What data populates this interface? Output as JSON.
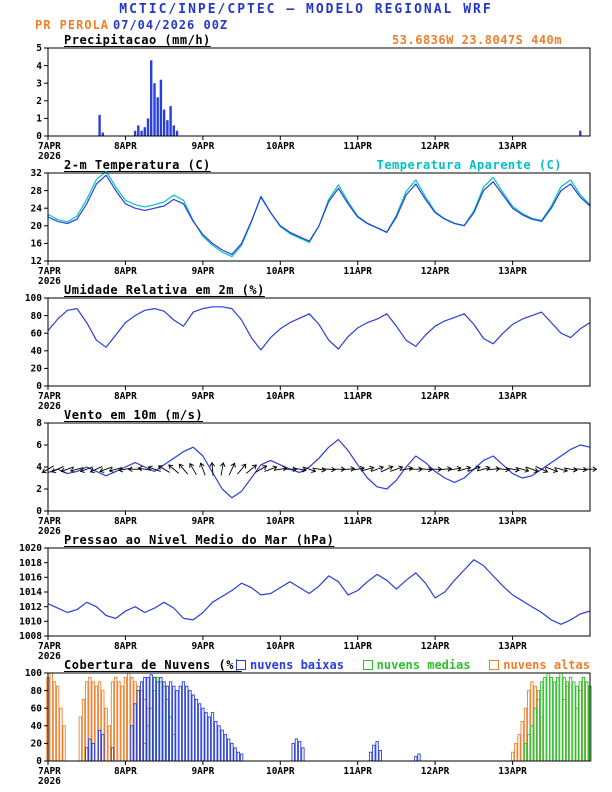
{
  "header": {
    "title": "MCTIC/INPE/CPTEC — MODELO REGIONAL WRF",
    "station": "PR PEROLA",
    "run": "07/04/2026 00Z",
    "location": "53.6836W 23.8047S 440m"
  },
  "colors": {
    "header_blue": "#2438c8",
    "orange": "#ee7f2d",
    "line_blue": "#2a3fd9",
    "cyan": "#00c2c2",
    "green": "#2fbf2f",
    "black": "#000000"
  },
  "x_axis": {
    "tmax": 168,
    "ticks": [
      {
        "t": 0,
        "label": "7APR",
        "sub": "2026"
      },
      {
        "t": 24,
        "label": "8APR"
      },
      {
        "t": 48,
        "label": "9APR"
      },
      {
        "t": 72,
        "label": "10APR"
      },
      {
        "t": 96,
        "label": "11APR"
      },
      {
        "t": 120,
        "label": "12APR"
      },
      {
        "t": 144,
        "label": "13APR"
      }
    ]
  },
  "chart_data": [
    {
      "id": "precipitation",
      "type": "bar",
      "title": "Precipitacao (mm/h)",
      "xlabel": "",
      "ylabel": "mm/h",
      "ylim": [
        0,
        5
      ],
      "yticks": [
        0,
        1,
        2,
        3,
        4,
        5
      ],
      "series": [
        {
          "name": "precipitation-bars",
          "type": "bars",
          "color": "line_blue",
          "fill": true,
          "bar_w": 2.4,
          "points": [
            [
              16,
              1.2
            ],
            [
              17,
              0.2
            ],
            [
              27,
              0.3
            ],
            [
              28,
              0.6
            ],
            [
              29,
              0.3
            ],
            [
              30,
              0.5
            ],
            [
              31,
              1.0
            ],
            [
              32,
              4.3
            ],
            [
              33,
              3.0
            ],
            [
              34,
              2.2
            ],
            [
              35,
              3.2
            ],
            [
              36,
              1.5
            ],
            [
              37,
              0.9
            ],
            [
              38,
              1.7
            ],
            [
              39,
              0.6
            ],
            [
              40,
              0.3
            ],
            [
              165,
              0.3
            ]
          ]
        }
      ]
    },
    {
      "id": "temperature",
      "type": "line",
      "title": "2-m Temperatura (C)",
      "right_label": {
        "text": "Temperatura Aparente (C)",
        "color": "cyan"
      },
      "ylim": [
        12,
        32
      ],
      "yticks": [
        12,
        16,
        20,
        24,
        28,
        32
      ],
      "series": [
        {
          "name": "apparent-temperature-line",
          "type": "line",
          "color": "cyan",
          "t0": 0,
          "dt": 3,
          "values": [
            22.6,
            21.4,
            20.9,
            22.2,
            26,
            30.5,
            32.4,
            28.8,
            25.8,
            24.8,
            24.3,
            24.8,
            25.4,
            27,
            25.8,
            21.2,
            17.6,
            15.6,
            14,
            13,
            15.6,
            20.8,
            26.8,
            23,
            19.8,
            18.2,
            17.2,
            16.2,
            20,
            26,
            29.3,
            25.5,
            22.2,
            20.6,
            19.6,
            18.6,
            22.4,
            27.8,
            30.4,
            26.6,
            23.2,
            21.6,
            20.6,
            20.1,
            23.4,
            28.8,
            31,
            27.6,
            24.4,
            22.8,
            21.7,
            21.2,
            24.5,
            28.9,
            30.4,
            27,
            24.8
          ]
        },
        {
          "name": "temperature-line",
          "type": "line",
          "color": "line_blue",
          "t0": 0,
          "dt": 3,
          "values": [
            22,
            21,
            20.5,
            21.5,
            25,
            29.5,
            31.5,
            28,
            25,
            24,
            23.5,
            24,
            24.5,
            26,
            25,
            21,
            18,
            16,
            14.5,
            13.5,
            16,
            21,
            26.5,
            23,
            20,
            18.5,
            17.5,
            16.5,
            20,
            25.5,
            28.5,
            25,
            22,
            20.5,
            19.5,
            18.5,
            22,
            27,
            29.5,
            26,
            23,
            21.5,
            20.5,
            20,
            23,
            28,
            30,
            27,
            24,
            22.5,
            21.5,
            21,
            24,
            28,
            29.5,
            26.5,
            24.5
          ]
        }
      ]
    },
    {
      "id": "humidity",
      "type": "line",
      "title": "Umidade Relativa em 2m (%)",
      "ylim": [
        0,
        100
      ],
      "yticks": [
        0,
        20,
        40,
        60,
        80,
        100
      ],
      "series": [
        {
          "name": "humidity-line",
          "type": "line",
          "color": "line_blue",
          "t0": 0,
          "dt": 3,
          "values": [
            63,
            76,
            86,
            88,
            72,
            52,
            44,
            58,
            72,
            80,
            86,
            88,
            85,
            75,
            68,
            84,
            88,
            90,
            90,
            88,
            75,
            55,
            41,
            55,
            65,
            72,
            77,
            82,
            70,
            52,
            42,
            56,
            66,
            72,
            76,
            82,
            68,
            52,
            45,
            58,
            68,
            74,
            78,
            82,
            70,
            54,
            48,
            60,
            70,
            76,
            80,
            84,
            72,
            60,
            55,
            65,
            72
          ]
        }
      ]
    },
    {
      "id": "wind",
      "type": "line",
      "title": "Vento em 10m (m/s)",
      "ylim": [
        0,
        8
      ],
      "yticks": [
        0,
        2,
        4,
        6,
        8
      ],
      "series": [
        {
          "name": "wind-speed-line",
          "type": "line",
          "color": "line_blue",
          "t0": 0,
          "dt": 3,
          "values": [
            3.5,
            3.8,
            3.4,
            3.6,
            4,
            3.6,
            3.2,
            3.6,
            4,
            4.4,
            4,
            3.6,
            4.2,
            4.8,
            5.4,
            5.8,
            5,
            3.5,
            2,
            1.2,
            1.8,
            3,
            4.2,
            4.6,
            4.2,
            3.8,
            3.5,
            4,
            4.8,
            5.8,
            6.5,
            5.5,
            4.2,
            3,
            2.2,
            2,
            2.8,
            4,
            5,
            4.4,
            3.6,
            3,
            2.6,
            3,
            3.8,
            4.6,
            5,
            4.2,
            3.4,
            3,
            3.2,
            3.8,
            4.4,
            5,
            5.6,
            6,
            5.8
          ]
        },
        {
          "name": "wind-direction-vectors",
          "type": "vectors",
          "color": "black",
          "t0": 0,
          "dt": 3,
          "y": 3.8,
          "dirs": [
            240,
            245,
            250,
            255,
            250,
            245,
            250,
            255,
            260,
            270,
            280,
            290,
            300,
            310,
            320,
            330,
            340,
            355,
            10,
            25,
            40,
            50,
            60,
            70,
            80,
            90,
            100,
            110,
            100,
            95,
            90,
            85,
            80,
            75,
            70,
            65,
            70,
            80,
            90,
            95,
            90,
            85,
            80,
            75,
            70,
            75,
            85,
            95,
            100,
            105,
            110,
            115,
            110,
            105,
            100,
            95,
            90
          ]
        }
      ]
    },
    {
      "id": "pressure",
      "type": "line",
      "title": "Pressao ao Nivel Medio do Mar (hPa)",
      "ylim": [
        1008,
        1020
      ],
      "yticks": [
        1008,
        1010,
        1012,
        1014,
        1016,
        1018,
        1020
      ],
      "series": [
        {
          "name": "pressure-line",
          "type": "line",
          "color": "line_blue",
          "t0": 0,
          "dt": 3,
          "values": [
            1012.4,
            1011.8,
            1011.2,
            1011.6,
            1012.6,
            1012,
            1010.8,
            1010.4,
            1011.4,
            1012,
            1011.2,
            1011.8,
            1012.6,
            1011.8,
            1010.4,
            1010.2,
            1011.2,
            1012.6,
            1013.4,
            1014.2,
            1015.2,
            1014.6,
            1013.6,
            1013.8,
            1014.6,
            1015.4,
            1014.6,
            1013.8,
            1014.8,
            1016.2,
            1015.4,
            1013.6,
            1014.2,
            1015.4,
            1016.4,
            1015.6,
            1014.4,
            1015.6,
            1016.6,
            1015.2,
            1013.2,
            1014,
            1015.6,
            1017,
            1018.4,
            1017.6,
            1016.2,
            1014.8,
            1013.6,
            1012.8,
            1012,
            1011.2,
            1010.2,
            1009.6,
            1010.2,
            1011,
            1011.4
          ]
        }
      ]
    },
    {
      "id": "cloud-cover",
      "type": "bar",
      "title": "Cobertura de Nuvens (%)",
      "ylim": [
        0,
        100
      ],
      "yticks": [
        0,
        20,
        40,
        60,
        80,
        100
      ],
      "legend": [
        {
          "label": "nuvens baixas",
          "color": "line_blue"
        },
        {
          "label": "nuvens medias",
          "color": "green"
        },
        {
          "label": "nuvens altas",
          "color": "orange"
        }
      ],
      "series": [
        {
          "name": "high-clouds-bars",
          "type": "bars",
          "color": "orange",
          "fill": false,
          "bar_w": 2.4,
          "points": [
            [
              0,
              95
            ],
            [
              1,
              100
            ],
            [
              2,
              90
            ],
            [
              3,
              85
            ],
            [
              4,
              60
            ],
            [
              5,
              40
            ],
            [
              10,
              50
            ],
            [
              11,
              70
            ],
            [
              12,
              90
            ],
            [
              13,
              95
            ],
            [
              14,
              90
            ],
            [
              15,
              85
            ],
            [
              16,
              90
            ],
            [
              17,
              80
            ],
            [
              18,
              60
            ],
            [
              19,
              40
            ],
            [
              20,
              90
            ],
            [
              21,
              95
            ],
            [
              22,
              90
            ],
            [
              23,
              85
            ],
            [
              24,
              95
            ],
            [
              25,
              100
            ],
            [
              26,
              95
            ],
            [
              27,
              90
            ],
            [
              28,
              85
            ],
            [
              29,
              80
            ],
            [
              30,
              70
            ],
            [
              31,
              60
            ],
            [
              144,
              10
            ],
            [
              145,
              20
            ],
            [
              146,
              30
            ],
            [
              147,
              45
            ],
            [
              148,
              60
            ],
            [
              149,
              80
            ],
            [
              150,
              90
            ],
            [
              151,
              85
            ],
            [
              152,
              70
            ],
            [
              153,
              50
            ],
            [
              160,
              70
            ],
            [
              161,
              85
            ],
            [
              164,
              60
            ],
            [
              165,
              80
            ],
            [
              166,
              95
            ],
            [
              167,
              90
            ]
          ]
        },
        {
          "name": "mid-clouds-bars",
          "type": "bars",
          "color": "green",
          "fill": false,
          "bar_w": 2.4,
          "points": [
            [
              30,
              20
            ],
            [
              31,
              40
            ],
            [
              32,
              60
            ],
            [
              33,
              80
            ],
            [
              34,
              95
            ],
            [
              35,
              90
            ],
            [
              36,
              85
            ],
            [
              37,
              70
            ],
            [
              38,
              50
            ],
            [
              39,
              30
            ],
            [
              148,
              20
            ],
            [
              149,
              30
            ],
            [
              150,
              40
            ],
            [
              151,
              60
            ],
            [
              152,
              80
            ],
            [
              153,
              90
            ],
            [
              154,
              95
            ],
            [
              155,
              100
            ],
            [
              156,
              95
            ],
            [
              157,
              90
            ],
            [
              158,
              95
            ],
            [
              159,
              100
            ],
            [
              160,
              95
            ],
            [
              161,
              90
            ],
            [
              162,
              95
            ],
            [
              163,
              90
            ],
            [
              164,
              85
            ],
            [
              165,
              90
            ],
            [
              166,
              95
            ],
            [
              167,
              90
            ],
            [
              168,
              85
            ]
          ]
        },
        {
          "name": "low-clouds-bars",
          "type": "bars",
          "color": "line_blue",
          "fill": false,
          "bar_w": 2.4,
          "points": [
            [
              12,
              15
            ],
            [
              13,
              25
            ],
            [
              14,
              20
            ],
            [
              16,
              35
            ],
            [
              17,
              30
            ],
            [
              20,
              15
            ],
            [
              26,
              40
            ],
            [
              27,
              65
            ],
            [
              28,
              80
            ],
            [
              29,
              90
            ],
            [
              30,
              95
            ],
            [
              31,
              95
            ],
            [
              32,
              98
            ],
            [
              33,
              95
            ],
            [
              34,
              90
            ],
            [
              35,
              95
            ],
            [
              36,
              90
            ],
            [
              37,
              85
            ],
            [
              38,
              90
            ],
            [
              39,
              85
            ],
            [
              40,
              80
            ],
            [
              41,
              85
            ],
            [
              42,
              90
            ],
            [
              43,
              85
            ],
            [
              44,
              80
            ],
            [
              45,
              75
            ],
            [
              46,
              70
            ],
            [
              47,
              65
            ],
            [
              48,
              60
            ],
            [
              49,
              55
            ],
            [
              50,
              50
            ],
            [
              51,
              55
            ],
            [
              52,
              45
            ],
            [
              53,
              40
            ],
            [
              54,
              35
            ],
            [
              55,
              30
            ],
            [
              56,
              25
            ],
            [
              57,
              20
            ],
            [
              58,
              15
            ],
            [
              59,
              10
            ],
            [
              60,
              8
            ],
            [
              76,
              20
            ],
            [
              77,
              25
            ],
            [
              78,
              22
            ],
            [
              79,
              15
            ],
            [
              100,
              10
            ],
            [
              101,
              18
            ],
            [
              102,
              22
            ],
            [
              103,
              12
            ],
            [
              114,
              5
            ],
            [
              115,
              8
            ]
          ]
        }
      ]
    }
  ]
}
